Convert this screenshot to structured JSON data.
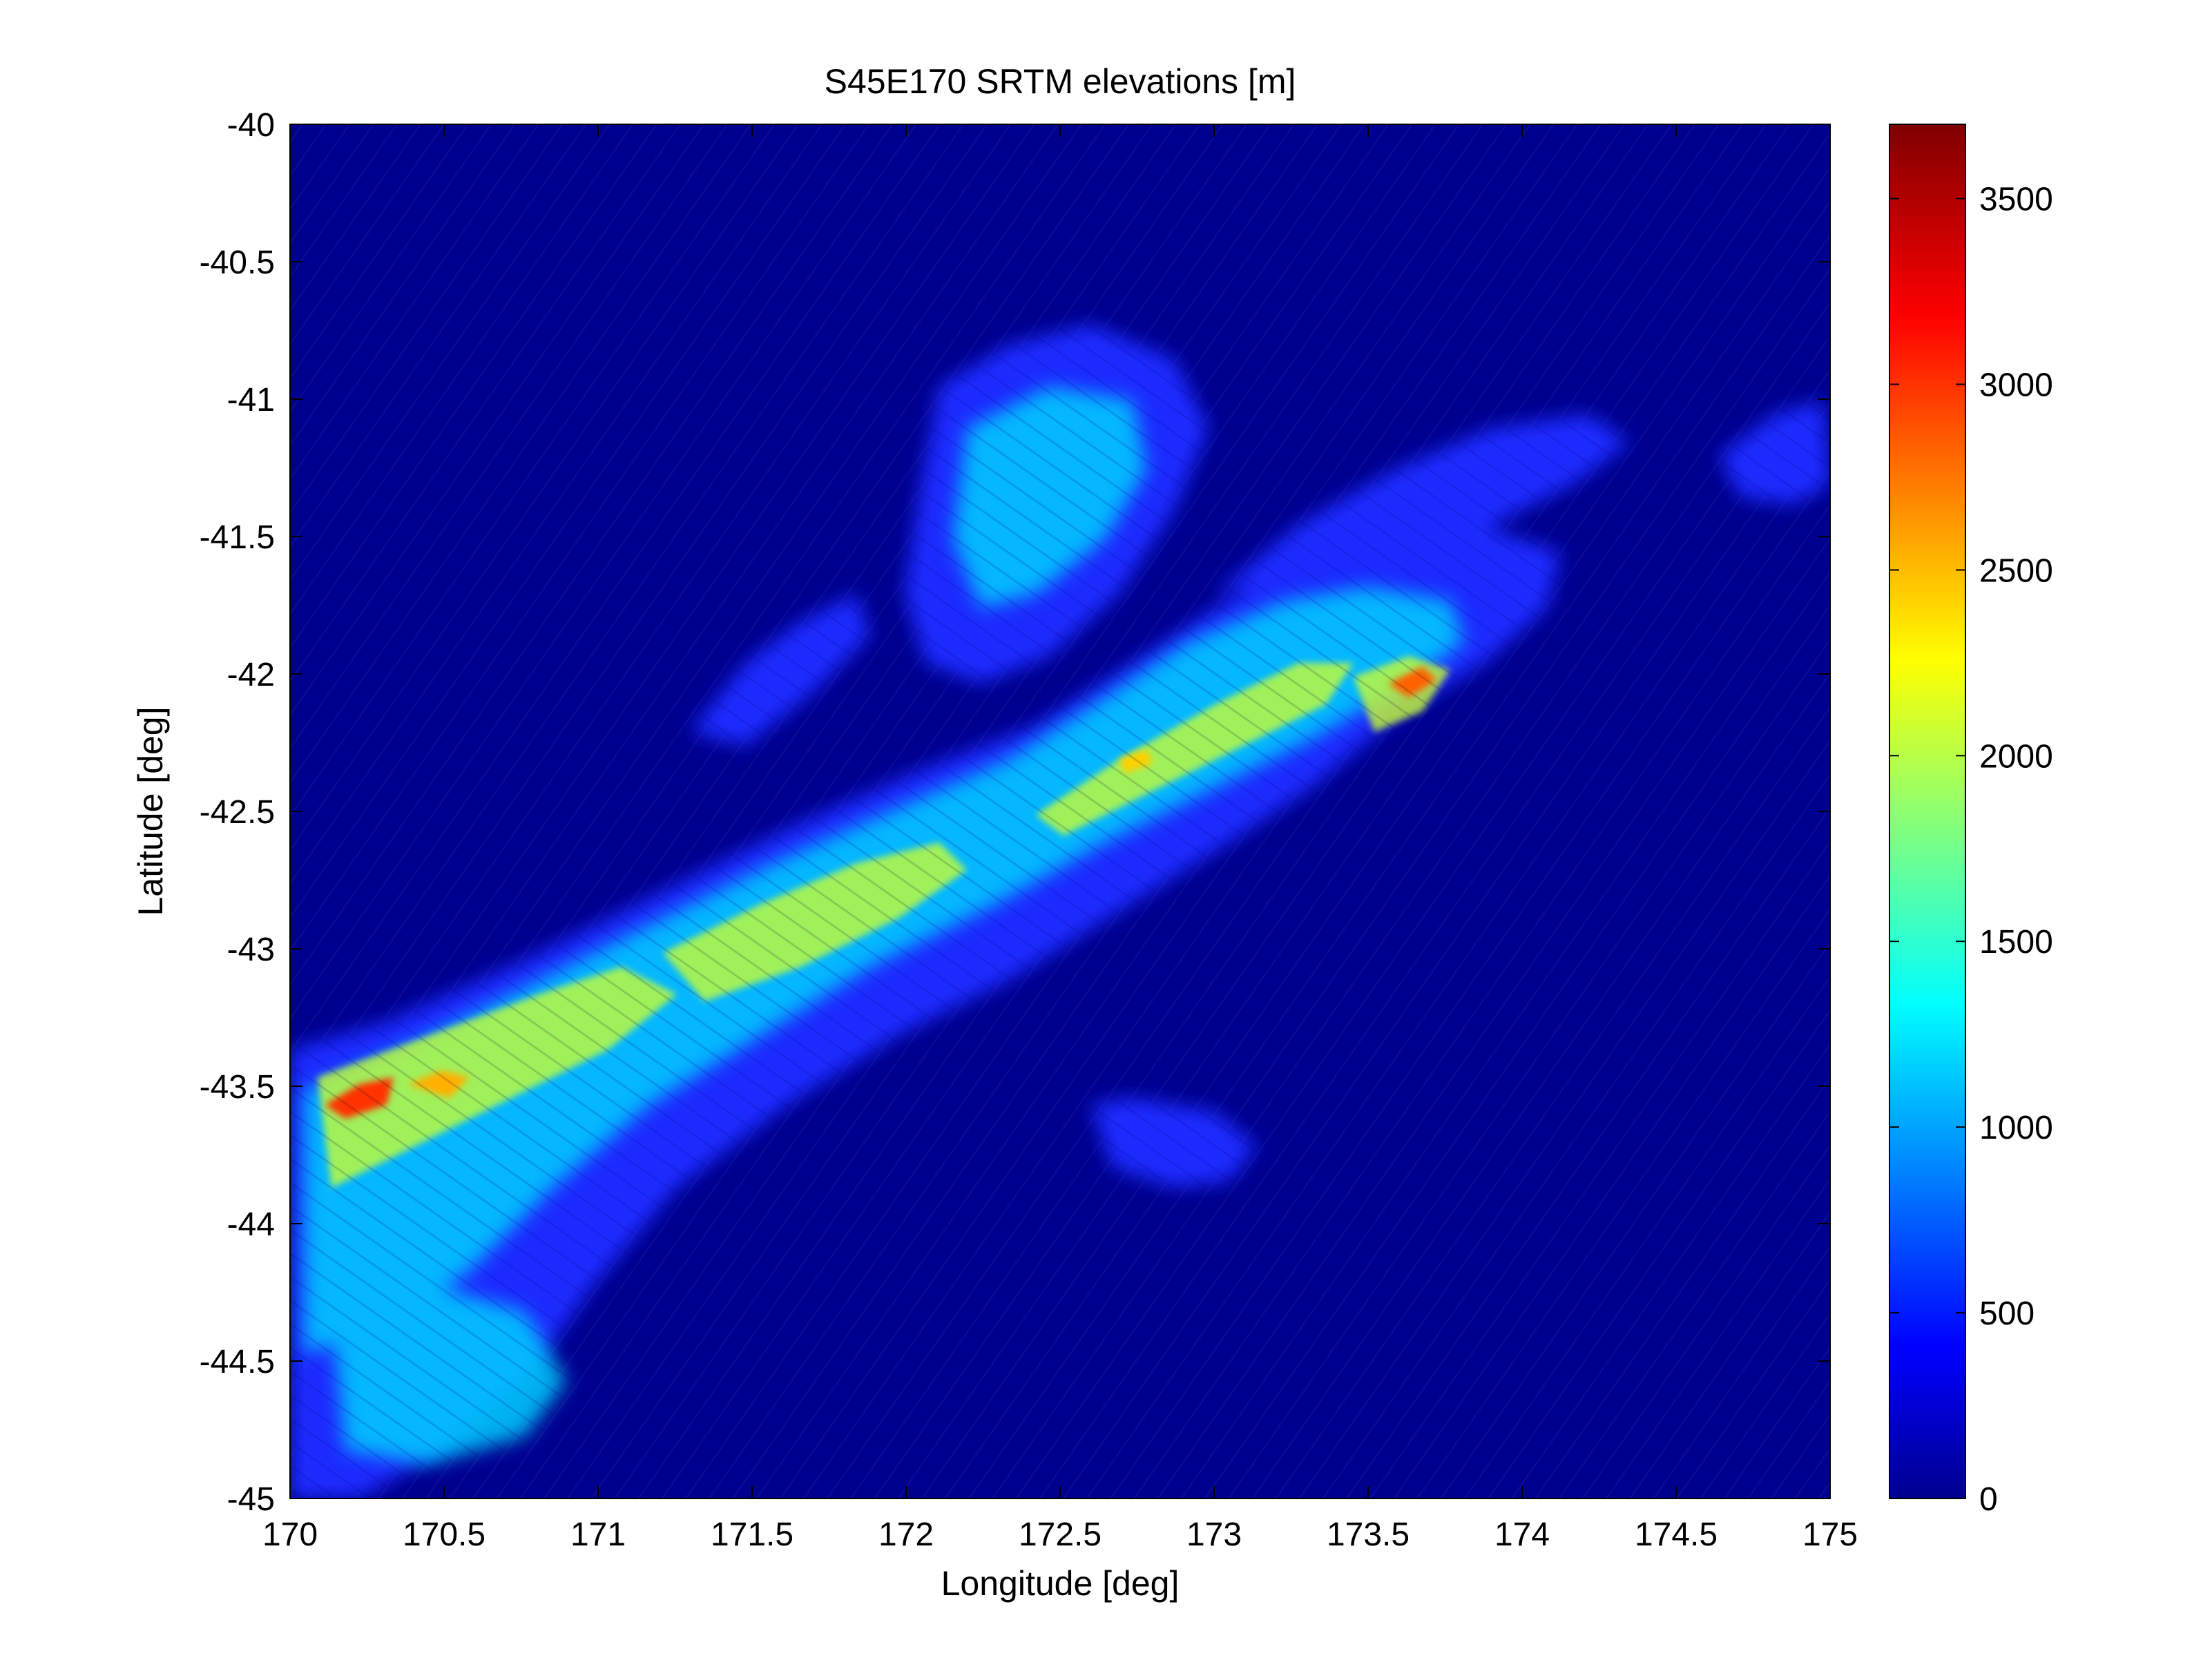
{
  "chart_data": {
    "type": "heatmap",
    "title": "S45E170 SRTM elevations [m]",
    "xlabel": "Longitude [deg]",
    "ylabel": "Latitude [deg]",
    "xlim": [
      170,
      175
    ],
    "ylim": [
      -45,
      -40
    ],
    "x_ticks": [
      170,
      170.5,
      171,
      171.5,
      172,
      172.5,
      173,
      173.5,
      174,
      174.5,
      175
    ],
    "y_ticks": [
      -40,
      -40.5,
      -41,
      -41.5,
      -42,
      -42.5,
      -43,
      -43.5,
      -44,
      -44.5,
      -45
    ],
    "x_tick_labels": [
      "170",
      "170.5",
      "171",
      "171.5",
      "172",
      "172.5",
      "173",
      "173.5",
      "174",
      "174.5",
      "175"
    ],
    "y_tick_labels": [
      "-40",
      "-40.5",
      "-41",
      "-41.5",
      "-42",
      "-42.5",
      "-43",
      "-43.5",
      "-44",
      "-44.5",
      "-45"
    ],
    "colormap": "jet",
    "color_range": [
      0,
      3700
    ],
    "colorbar_ticks": [
      0,
      500,
      1000,
      1500,
      2000,
      2500,
      3000,
      3500
    ],
    "colorbar_tick_labels": [
      "0",
      "500",
      "1000",
      "1500",
      "2000",
      "2500",
      "3000",
      "3500"
    ],
    "background_value": 0,
    "grid": false
  },
  "colors": {
    "ocean": "#00008f",
    "axis": "#000000",
    "background": "#ffffff"
  }
}
